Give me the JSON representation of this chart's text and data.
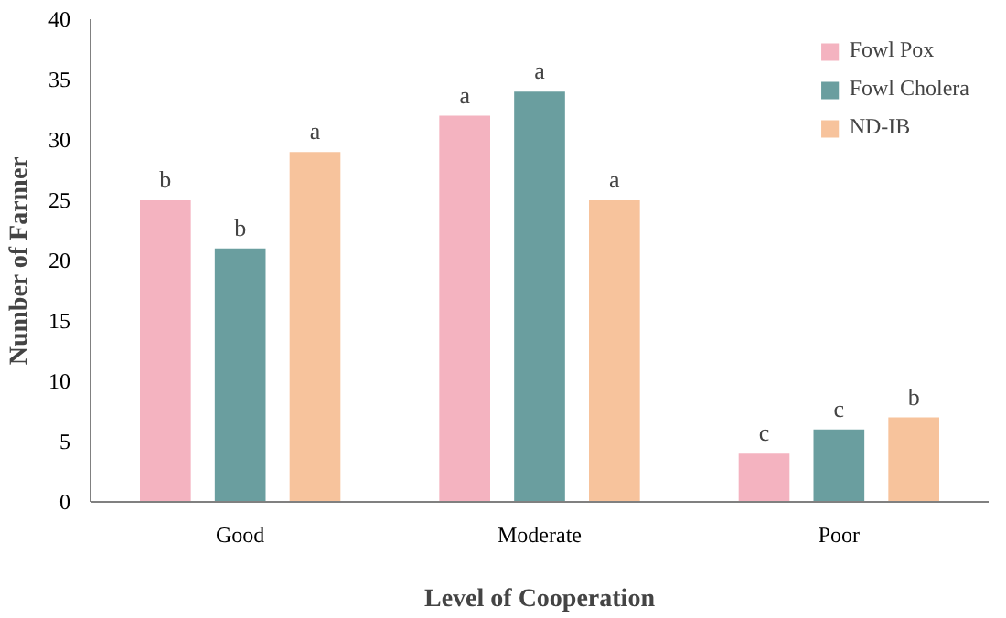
{
  "chart_data": {
    "type": "bar",
    "xlabel": "Level of Cooperation",
    "ylabel": "Number of Farmer",
    "categories": [
      "Good",
      "Moderate",
      "Poor"
    ],
    "series": [
      {
        "name": "Fowl Pox",
        "color": "#f4b3c0",
        "values": [
          25,
          32,
          4
        ],
        "value_labels": [
          "b",
          "a",
          "c"
        ]
      },
      {
        "name": "Fowl Cholera",
        "color": "#6a9e9f",
        "values": [
          21,
          34,
          6
        ],
        "value_labels": [
          "b",
          "a",
          "c"
        ]
      },
      {
        "name": "ND-IB",
        "color": "#f7c39c",
        "values": [
          29,
          25,
          7
        ],
        "value_labels": [
          "a",
          "a",
          "b"
        ]
      }
    ],
    "ylim": [
      0,
      40
    ],
    "yticks": [
      0,
      5,
      10,
      15,
      20,
      25,
      30,
      35,
      40
    ],
    "grid": false,
    "legend": "top right"
  }
}
